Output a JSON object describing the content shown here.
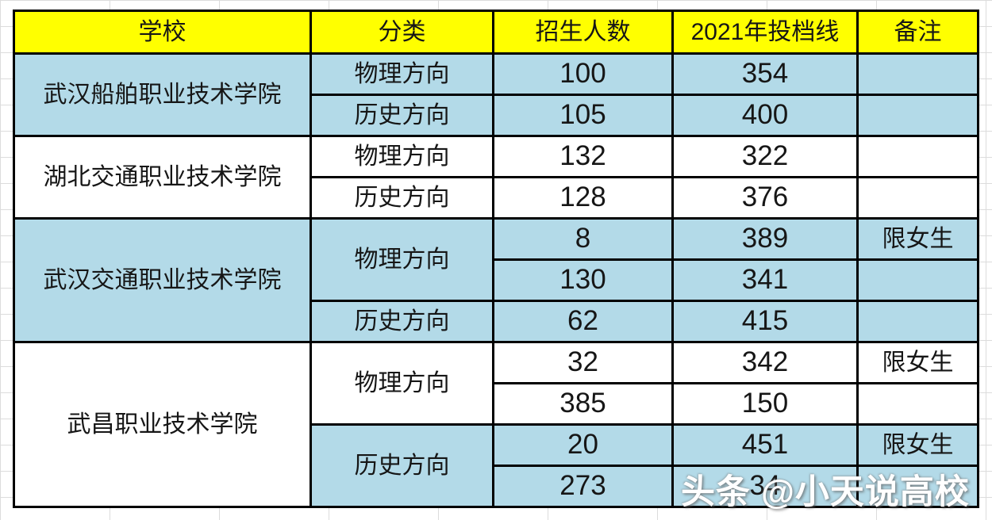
{
  "colors": {
    "header_bg": "#FFFF00",
    "row_blue": "#B3DAE8",
    "row_white": "#FFFFFF",
    "border": "#000000",
    "watermark_text": "#FFFFFF",
    "gridline": "#DCDCDC"
  },
  "table": {
    "headers": [
      "学校",
      "分类",
      "招生人数",
      "2021年投档线",
      "备注"
    ],
    "schools": [
      {
        "name": "武汉船舶职业技术学院"
      },
      {
        "name": "湖北交通职业技术学院"
      },
      {
        "name": "武汉交通职业技术学院"
      },
      {
        "name": "武昌职业技术学院"
      }
    ],
    "categories": [
      {
        "label": "物理方向"
      },
      {
        "label": "历史方向"
      },
      {
        "label": "物理方向"
      },
      {
        "label": "历史方向"
      },
      {
        "label": "物理方向"
      },
      {
        "label": "历史方向"
      },
      {
        "label": "物理方向"
      },
      {
        "label": "历史方向"
      }
    ],
    "rows": [
      {
        "enrollment": "100",
        "line": "354",
        "remark": ""
      },
      {
        "enrollment": "105",
        "line": "400",
        "remark": ""
      },
      {
        "enrollment": "132",
        "line": "322",
        "remark": ""
      },
      {
        "enrollment": "128",
        "line": "376",
        "remark": ""
      },
      {
        "enrollment": "8",
        "line": "389",
        "remark": "限女生"
      },
      {
        "enrollment": "130",
        "line": "341",
        "remark": ""
      },
      {
        "enrollment": "62",
        "line": "415",
        "remark": ""
      },
      {
        "enrollment": "32",
        "line": "342",
        "remark": "限女生"
      },
      {
        "enrollment": "385",
        "line": "150",
        "remark": ""
      },
      {
        "enrollment": "20",
        "line": "451",
        "remark": "限女生"
      },
      {
        "enrollment": "273",
        "line": "34",
        "remark": ""
      }
    ]
  },
  "watermark": {
    "text": "头条 @小天说高校"
  }
}
